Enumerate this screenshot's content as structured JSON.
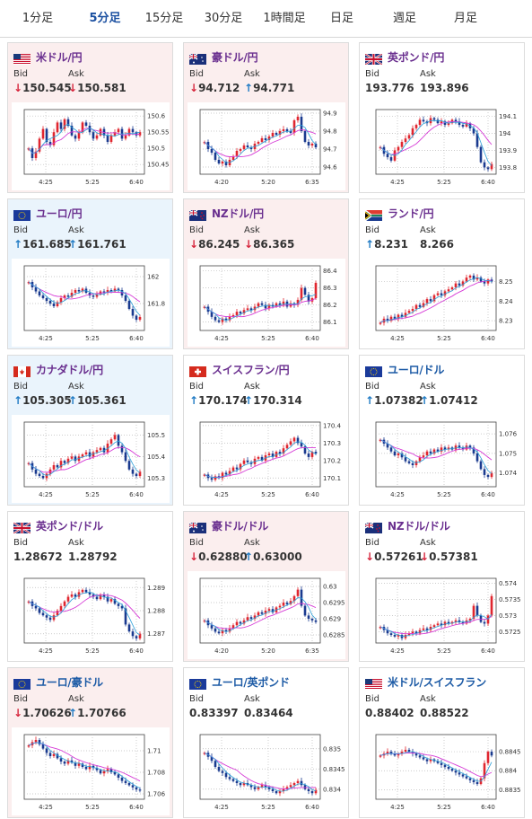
{
  "tabs": [
    {
      "label": "1分足",
      "active": false
    },
    {
      "label": "5分足",
      "active": true
    },
    {
      "label": "15分足",
      "active": false
    },
    {
      "label": "30分足",
      "active": false
    },
    {
      "label": "1時間足",
      "active": false
    },
    {
      "label": "日足",
      "active": false
    },
    {
      "label": "週足",
      "active": false
    },
    {
      "label": "月足",
      "active": false
    }
  ],
  "labels": {
    "bid": "Bid",
    "ask": "Ask"
  },
  "colors": {
    "up": "#1f7ac4",
    "down": "#d7263d",
    "ma": "#d63bd6",
    "ma_fast": "#2a9fd8",
    "candle_up": "#e0262f",
    "candle_dn": "#1a3a8f"
  },
  "cards": [
    {
      "pair": "米ドル/円",
      "flag": "us-flag-icon",
      "bid": "150.545",
      "ask": "150.581",
      "bid_dir": "down",
      "ask_dir": "down",
      "bg": "down",
      "pair_color": "purple",
      "chart_data": {
        "type": "candlestick",
        "x_ticks": [
          "4:25",
          "5:25",
          "6:40"
        ],
        "y_ticks": [
          "150.6",
          "150.55",
          "150.5",
          "150.45"
        ],
        "ylim": [
          150.42,
          150.62
        ],
        "close": [
          150.5,
          150.47,
          150.49,
          150.53,
          150.56,
          150.52,
          150.51,
          150.55,
          150.58,
          150.56,
          150.59,
          150.57,
          150.54,
          150.53,
          150.55,
          150.58,
          150.57,
          150.55,
          150.53,
          150.54,
          150.56,
          150.54,
          150.52,
          150.54,
          150.55,
          150.56,
          150.53,
          150.54,
          150.56,
          150.55,
          150.54,
          150.55
        ]
      }
    },
    {
      "pair": "豪ドル/円",
      "flag": "au-flag-icon",
      "bid": "94.712",
      "ask": "94.771",
      "bid_dir": "down",
      "ask_dir": "up",
      "bg": "down",
      "pair_color": "purple",
      "chart_data": {
        "type": "candlestick",
        "x_ticks": [
          "4:20",
          "5:20",
          "6:35"
        ],
        "y_ticks": [
          "94.9",
          "94.8",
          "94.7",
          "94.6"
        ],
        "ylim": [
          94.56,
          94.92
        ],
        "close": [
          94.74,
          94.7,
          94.68,
          94.64,
          94.62,
          94.63,
          94.61,
          94.64,
          94.66,
          94.69,
          94.7,
          94.72,
          94.71,
          94.7,
          94.73,
          94.74,
          94.76,
          94.75,
          94.77,
          94.79,
          94.78,
          94.8,
          94.81,
          94.8,
          94.79,
          94.86,
          94.88,
          94.8,
          94.74,
          94.72,
          94.73,
          94.71
        ]
      }
    },
    {
      "pair": "英ポンド/円",
      "flag": "gb-flag-icon",
      "bid": "193.776",
      "ask": "193.896",
      "bid_dir": "none",
      "ask_dir": "none",
      "bg": "flat",
      "pair_color": "purple",
      "chart_data": {
        "type": "candlestick",
        "x_ticks": [
          "4:25",
          "5:25",
          "6:40"
        ],
        "y_ticks": [
          "194.1",
          "194",
          "193.9",
          "193.8"
        ],
        "ylim": [
          193.76,
          194.14
        ],
        "close": [
          193.92,
          193.88,
          193.86,
          193.84,
          193.9,
          193.92,
          193.95,
          193.97,
          193.99,
          194.03,
          194.05,
          194.08,
          194.07,
          194.06,
          194.09,
          194.08,
          194.06,
          194.07,
          194.05,
          194.06,
          194.08,
          194.07,
          194.05,
          194.04,
          194.06,
          194.03,
          194.0,
          193.92,
          193.83,
          193.8,
          193.79,
          193.82
        ]
      }
    },
    {
      "pair": "ユーロ/円",
      "flag": "eu-flag-icon",
      "bid": "161.685",
      "ask": "161.761",
      "bid_dir": "up",
      "ask_dir": "up",
      "bg": "up",
      "pair_color": "purple",
      "chart_data": {
        "type": "candlestick",
        "x_ticks": [
          "4:25",
          "5:25",
          "6:40"
        ],
        "y_ticks": [
          "162",
          "161.8"
        ],
        "ylim": [
          161.6,
          162.08
        ],
        "close": [
          161.96,
          161.92,
          161.89,
          161.86,
          161.84,
          161.82,
          161.8,
          161.78,
          161.81,
          161.84,
          161.86,
          161.85,
          161.88,
          161.9,
          161.89,
          161.91,
          161.88,
          161.86,
          161.85,
          161.87,
          161.89,
          161.88,
          161.9,
          161.89,
          161.91,
          161.9,
          161.86,
          161.82,
          161.76,
          161.71,
          161.68,
          161.7
        ]
      }
    },
    {
      "pair": "NZドル/円",
      "flag": "nz-flag-icon",
      "bid": "86.245",
      "ask": "86.365",
      "bid_dir": "down",
      "ask_dir": "down",
      "bg": "down",
      "pair_color": "purple",
      "chart_data": {
        "type": "candlestick",
        "x_ticks": [
          "4:25",
          "5:25",
          "6:40"
        ],
        "y_ticks": [
          "86.4",
          "86.3",
          "86.2",
          "86.1"
        ],
        "ylim": [
          86.05,
          86.43
        ],
        "close": [
          86.19,
          86.16,
          86.13,
          86.11,
          86.1,
          86.12,
          86.11,
          86.13,
          86.14,
          86.16,
          86.15,
          86.17,
          86.18,
          86.17,
          86.19,
          86.21,
          86.2,
          86.18,
          86.2,
          86.19,
          86.21,
          86.2,
          86.22,
          86.19,
          86.21,
          86.2,
          86.23,
          86.3,
          86.26,
          86.22,
          86.24,
          86.33
        ]
      }
    },
    {
      "pair": "ランド/円",
      "flag": "za-flag-icon",
      "bid": "8.231",
      "ask": "8.266",
      "bid_dir": "up",
      "ask_dir": "none",
      "bg": "flat",
      "pair_color": "purple",
      "chart_data": {
        "type": "candlestick",
        "x_ticks": [
          "4:25",
          "5:25",
          "6:40"
        ],
        "y_ticks": [
          "8.25",
          "8.24",
          "8.23"
        ],
        "ylim": [
          8.225,
          8.258
        ],
        "close": [
          8.229,
          8.231,
          8.23,
          8.232,
          8.231,
          8.233,
          8.232,
          8.234,
          8.235,
          8.236,
          8.238,
          8.237,
          8.239,
          8.241,
          8.24,
          8.243,
          8.244,
          8.243,
          8.245,
          8.246,
          8.247,
          8.249,
          8.248,
          8.25,
          8.252,
          8.253,
          8.251,
          8.252,
          8.25,
          8.249,
          8.251,
          8.25
        ]
      }
    },
    {
      "pair": "カナダドル/円",
      "flag": "ca-flag-icon",
      "bid": "105.305",
      "ask": "105.361",
      "bid_dir": "up",
      "ask_dir": "up",
      "bg": "up",
      "pair_color": "purple",
      "chart_data": {
        "type": "candlestick",
        "x_ticks": [
          "4:25",
          "5:25",
          "6:40"
        ],
        "y_ticks": [
          "105.5",
          "105.4",
          "105.3"
        ],
        "ylim": [
          105.26,
          105.56
        ],
        "close": [
          105.37,
          105.34,
          105.32,
          105.31,
          105.3,
          105.32,
          105.34,
          105.36,
          105.35,
          105.38,
          105.37,
          105.39,
          105.4,
          105.38,
          105.4,
          105.41,
          105.42,
          105.4,
          105.42,
          105.43,
          105.44,
          105.42,
          105.46,
          105.48,
          105.5,
          105.45,
          105.42,
          105.38,
          105.34,
          105.32,
          105.31,
          105.33
        ]
      }
    },
    {
      "pair": "スイスフラン/円",
      "flag": "ch-flag-icon",
      "bid": "170.174",
      "ask": "170.314",
      "bid_dir": "up",
      "ask_dir": "up",
      "bg": "flat",
      "pair_color": "purple",
      "chart_data": {
        "type": "candlestick",
        "x_ticks": [
          "4:25",
          "5:25",
          "6:40"
        ],
        "y_ticks": [
          "170.4",
          "170.3",
          "170.2",
          "170.1"
        ],
        "ylim": [
          170.05,
          170.42
        ],
        "close": [
          170.12,
          170.1,
          170.09,
          170.11,
          170.1,
          170.13,
          170.12,
          170.14,
          170.16,
          170.15,
          170.18,
          170.2,
          170.19,
          170.18,
          170.21,
          170.22,
          170.2,
          170.23,
          170.24,
          170.22,
          170.25,
          170.24,
          170.27,
          170.29,
          170.31,
          170.33,
          170.3,
          170.28,
          170.24,
          170.22,
          170.25,
          170.24
        ]
      }
    },
    {
      "pair": "ユーロ/ドル",
      "flag": "eu-flag-icon",
      "bid": "1.07382",
      "ask": "1.07412",
      "bid_dir": "up",
      "ask_dir": "up",
      "bg": "flat",
      "pair_color": "blue",
      "chart_data": {
        "type": "candlestick",
        "x_ticks": [
          "4:25",
          "5:25",
          "6:40"
        ],
        "y_ticks": [
          "1.076",
          "1.075",
          "1.074"
        ],
        "ylim": [
          1.0733,
          1.0766
        ],
        "close": [
          1.0757,
          1.0755,
          1.0753,
          1.0751,
          1.0749,
          1.075,
          1.0748,
          1.0746,
          1.0745,
          1.0744,
          1.0746,
          1.0748,
          1.0749,
          1.0751,
          1.075,
          1.0752,
          1.0751,
          1.0753,
          1.0752,
          1.0753,
          1.0752,
          1.0754,
          1.0753,
          1.0752,
          1.0754,
          1.0753,
          1.075,
          1.0746,
          1.0742,
          1.0739,
          1.0738,
          1.074
        ]
      }
    },
    {
      "pair": "英ポンド/ドル",
      "flag": "gb-flag-icon",
      "bid": "1.28672",
      "ask": "1.28792",
      "bid_dir": "none",
      "ask_dir": "none",
      "bg": "flat",
      "pair_color": "purple",
      "chart_data": {
        "type": "candlestick",
        "x_ticks": [
          "4:25",
          "5:25",
          "6:40"
        ],
        "y_ticks": [
          "1.289",
          "1.288",
          "1.287"
        ],
        "ylim": [
          1.2866,
          1.2894
        ],
        "close": [
          1.2884,
          1.2882,
          1.2881,
          1.2879,
          1.2878,
          1.2877,
          1.2876,
          1.2878,
          1.288,
          1.2882,
          1.2884,
          1.2886,
          1.2887,
          1.2886,
          1.2888,
          1.2889,
          1.2888,
          1.2887,
          1.2886,
          1.2885,
          1.2887,
          1.2886,
          1.2884,
          1.2885,
          1.2883,
          1.2882,
          1.2881,
          1.2874,
          1.2871,
          1.2869,
          1.2868,
          1.287
        ]
      }
    },
    {
      "pair": "豪ドル/ドル",
      "flag": "au-flag-icon",
      "bid": "0.62880",
      "ask": "0.63000",
      "bid_dir": "down",
      "ask_dir": "up",
      "bg": "down",
      "pair_color": "purple",
      "chart_data": {
        "type": "candlestick",
        "x_ticks": [
          "4:20",
          "5:20",
          "6:35"
        ],
        "y_ticks": [
          "0.63",
          "0.6295",
          "0.629",
          "0.6285"
        ],
        "ylim": [
          0.62825,
          0.63025
        ],
        "close": [
          0.62895,
          0.6288,
          0.6287,
          0.6286,
          0.62855,
          0.62865,
          0.6286,
          0.6287,
          0.6288,
          0.6289,
          0.62885,
          0.62895,
          0.62905,
          0.629,
          0.6291,
          0.6292,
          0.62915,
          0.62925,
          0.6293,
          0.6292,
          0.62935,
          0.6294,
          0.6295,
          0.62945,
          0.62955,
          0.6297,
          0.6299,
          0.6294,
          0.6291,
          0.629,
          0.62895,
          0.6289
        ]
      }
    },
    {
      "pair": "NZドル/ドル",
      "flag": "nz-flag-icon",
      "bid": "0.57261",
      "ask": "0.57381",
      "bid_dir": "down",
      "ask_dir": "down",
      "bg": "flat",
      "pair_color": "purple",
      "chart_data": {
        "type": "candlestick",
        "x_ticks": [
          "4:25",
          "5:25",
          "6:40"
        ],
        "y_ticks": [
          "0.574",
          "0.5735",
          "0.573",
          "0.5725"
        ],
        "ylim": [
          0.57215,
          0.57415
        ],
        "close": [
          0.57265,
          0.57255,
          0.57245,
          0.5724,
          0.57235,
          0.5724,
          0.5723,
          0.5724,
          0.57245,
          0.5725,
          0.57245,
          0.57255,
          0.5726,
          0.57255,
          0.57265,
          0.5727,
          0.57275,
          0.5727,
          0.5728,
          0.57275,
          0.5728,
          0.57285,
          0.5728,
          0.57275,
          0.57285,
          0.5729,
          0.5733,
          0.573,
          0.5728,
          0.57275,
          0.573,
          0.5736
        ]
      }
    },
    {
      "pair": "ユーロ/豪ドル",
      "flag": "eu-flag-icon",
      "bid": "1.70626",
      "ask": "1.70766",
      "bid_dir": "down",
      "ask_dir": "up",
      "bg": "down",
      "pair_color": "blue",
      "chart_data": {
        "type": "candlestick",
        "x_ticks": [
          "4:25",
          "5:25",
          "6:40"
        ],
        "y_ticks": [
          "1.71",
          "1.708",
          "1.706"
        ],
        "ylim": [
          1.7055,
          1.7115
        ],
        "close": [
          1.7105,
          1.7108,
          1.711,
          1.7106,
          1.7102,
          1.7098,
          1.7095,
          1.7097,
          1.7093,
          1.709,
          1.7088,
          1.7091,
          1.7089,
          1.7086,
          1.7088,
          1.7085,
          1.7083,
          1.7086,
          1.7084,
          1.7082,
          1.7079,
          1.7081,
          1.7083,
          1.708,
          1.7078,
          1.7075,
          1.7072,
          1.707,
          1.7068,
          1.7066,
          1.7064,
          1.7063
        ]
      }
    },
    {
      "pair": "ユーロ/英ポンド",
      "flag": "eu-flag-icon",
      "bid": "0.83397",
      "ask": "0.83464",
      "bid_dir": "none",
      "ask_dir": "none",
      "bg": "flat",
      "pair_color": "blue",
      "chart_data": {
        "type": "candlestick",
        "x_ticks": [
          "4:25",
          "5:25",
          "6:40"
        ],
        "y_ticks": [
          "0.835",
          "0.8345",
          "0.834"
        ],
        "ylim": [
          0.83375,
          0.83535
        ],
        "close": [
          0.8349,
          0.8348,
          0.8347,
          0.83455,
          0.83445,
          0.8344,
          0.8343,
          0.83425,
          0.8342,
          0.83415,
          0.8341,
          0.83415,
          0.8341,
          0.83405,
          0.834,
          0.83405,
          0.8341,
          0.83405,
          0.834,
          0.83395,
          0.8339,
          0.83395,
          0.834,
          0.83405,
          0.8341,
          0.83415,
          0.8342,
          0.8341,
          0.834,
          0.83395,
          0.8339,
          0.83398
        ]
      }
    },
    {
      "pair": "米ドル/スイスフラン",
      "flag": "us-flag-icon",
      "bid": "0.88402",
      "ask": "0.88522",
      "bid_dir": "none",
      "ask_dir": "none",
      "bg": "flat",
      "pair_color": "blue",
      "chart_data": {
        "type": "candlestick",
        "x_ticks": [
          "4:25",
          "5:25",
          "6:40"
        ],
        "y_ticks": [
          "0.8845",
          "0.884",
          "0.8835"
        ],
        "ylim": [
          0.88325,
          0.88495
        ],
        "close": [
          0.8844,
          0.88445,
          0.8845,
          0.88445,
          0.8844,
          0.88445,
          0.8845,
          0.88455,
          0.8845,
          0.88445,
          0.8844,
          0.88435,
          0.8843,
          0.88425,
          0.8843,
          0.88425,
          0.8842,
          0.88415,
          0.8841,
          0.88405,
          0.884,
          0.88395,
          0.8839,
          0.88385,
          0.8838,
          0.88375,
          0.8837,
          0.88365,
          0.8838,
          0.8842,
          0.8845,
          0.8844
        ]
      }
    }
  ]
}
